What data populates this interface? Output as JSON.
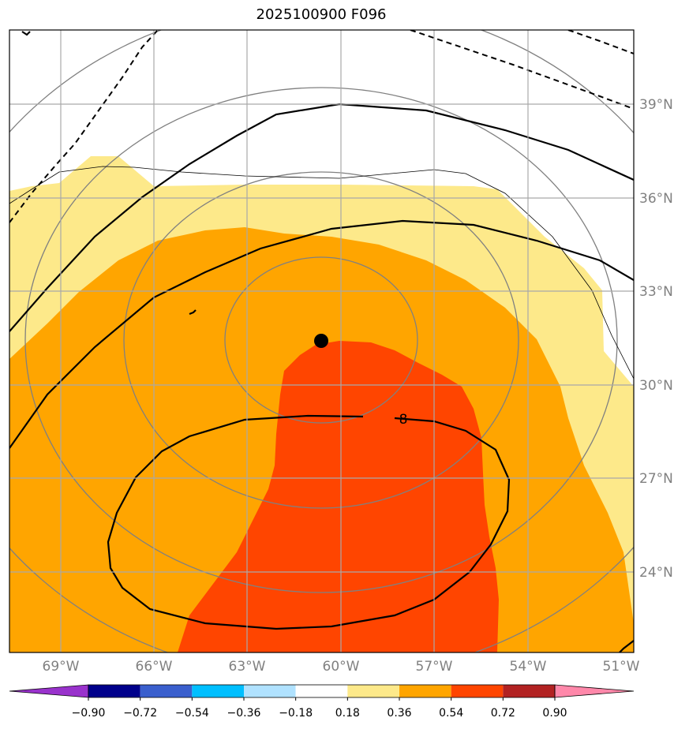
{
  "title": "2025100900 F096",
  "map": {
    "fill_colors": {
      "light_yellow": "#fde98a",
      "orange": "#ffa500",
      "red_orange": "#ff4500",
      "white": "#ffffff"
    },
    "gridline_color": "#a9a9a9",
    "circle_color": "#808080",
    "contour_color": "#000000",
    "contour_label": "8",
    "center_marker": "storm-center-dot"
  },
  "lat_labels": [
    "39°N",
    "36°N",
    "33°N",
    "30°N",
    "27°N",
    "24°N"
  ],
  "lon_labels": [
    "69°W",
    "66°W",
    "63°W",
    "60°W",
    "57°W",
    "54°W",
    "51°W"
  ],
  "colorbar": {
    "colors": [
      "#9932cc",
      "#00008b",
      "#3a5fcd",
      "#00bfff",
      "#b0e2ff",
      "#ffffff",
      "#fde98a",
      "#ffa500",
      "#ff4500",
      "#b22222",
      "#ff88aa"
    ],
    "ticks": [
      "−0.90",
      "−0.72",
      "−0.54",
      "−0.36",
      "−0.18",
      "0.18",
      "0.36",
      "0.54",
      "0.72",
      "0.90"
    ]
  }
}
